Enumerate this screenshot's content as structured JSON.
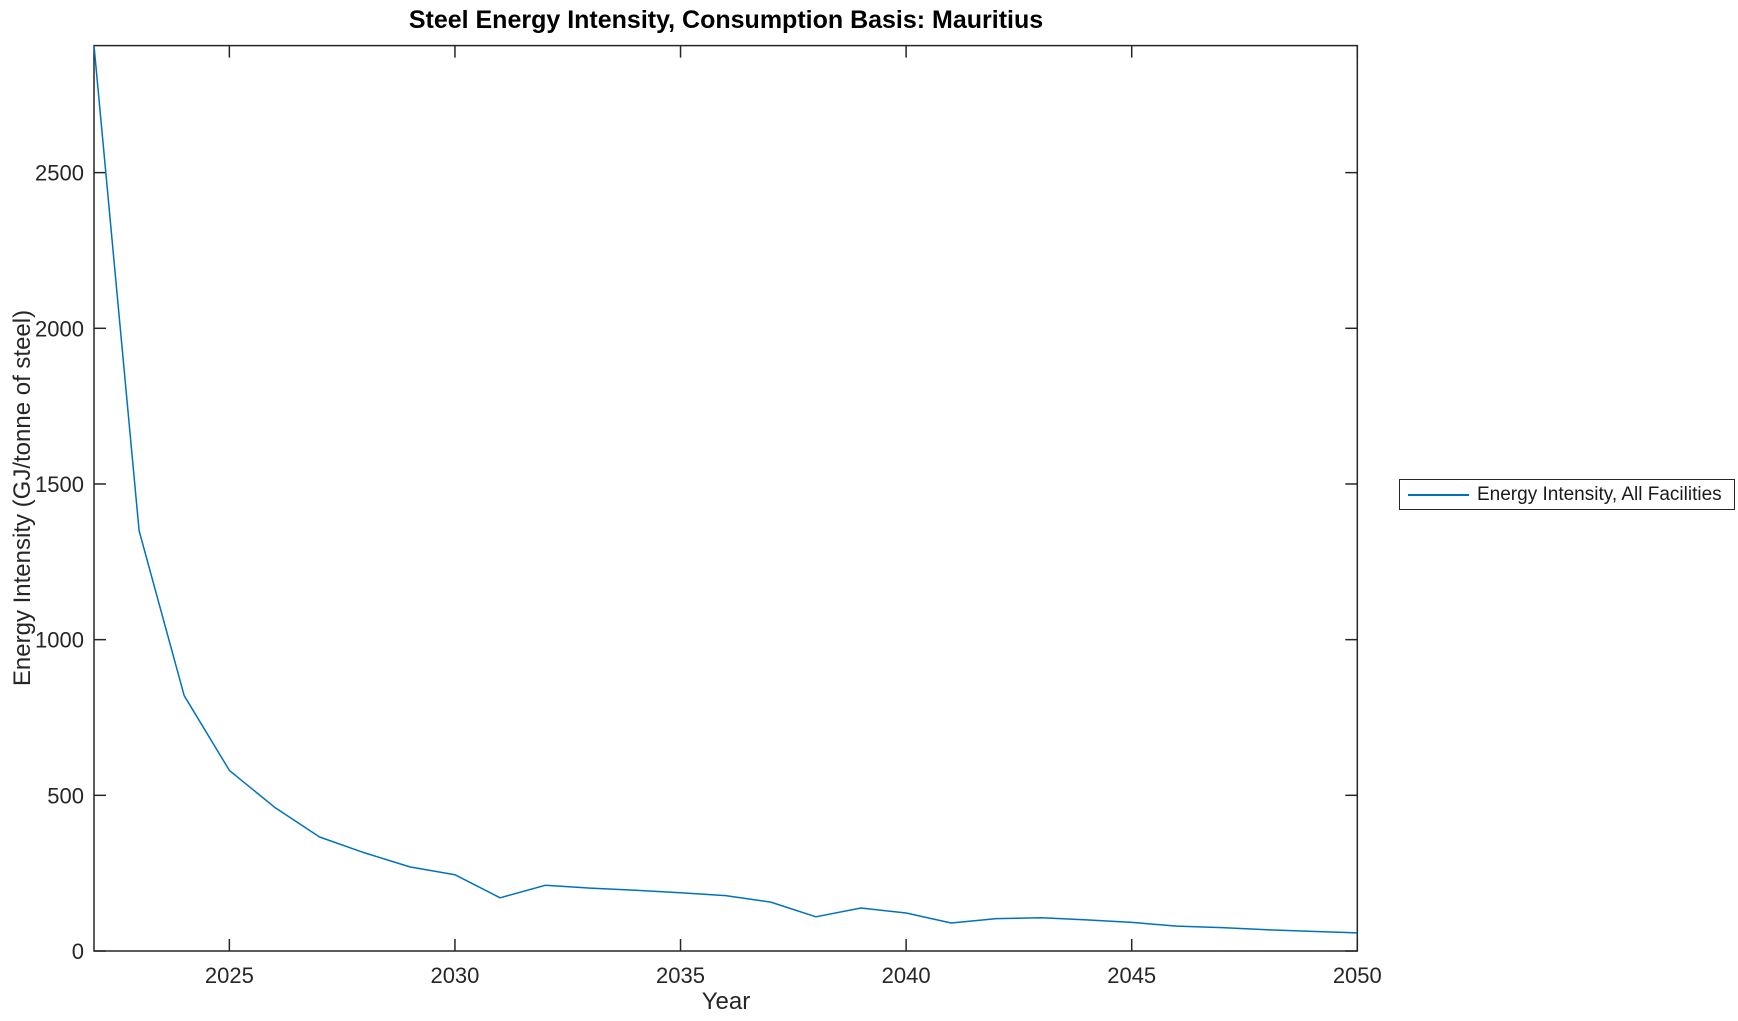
{
  "chart_data": {
    "type": "line",
    "title": "Steel Energy Intensity, Consumption Basis: Mauritius",
    "xlabel": "Year",
    "ylabel": "Energy Intensity (GJ/tonne of steel)",
    "xlim": [
      2022,
      2050
    ],
    "ylim": [
      0,
      2908
    ],
    "xticks": [
      2025,
      2030,
      2035,
      2040,
      2045,
      2050
    ],
    "yticks": [
      0,
      500,
      1000,
      1500,
      2000,
      2500
    ],
    "grid": false,
    "box": true,
    "tick_direction": "in",
    "line_color": "#0072BD",
    "axis_color": "#262626",
    "background_color": "#ffffff",
    "legend": {
      "position": "outside-right",
      "entries": [
        "Energy Intensity, All Facilities"
      ]
    },
    "x": [
      2022,
      2023,
      2024,
      2025,
      2026,
      2027,
      2028,
      2029,
      2030,
      2031,
      2032,
      2033,
      2034,
      2035,
      2036,
      2037,
      2038,
      2039,
      2040,
      2041,
      2042,
      2043,
      2044,
      2045,
      2046,
      2047,
      2048,
      2049,
      2050
    ],
    "series": [
      {
        "name": "Energy Intensity, All Facilities",
        "values": [
          2908,
          1350,
          820,
          580,
          462,
          366,
          315,
          270,
          245,
          171,
          211,
          202,
          195,
          187,
          178,
          157,
          110,
          138,
          122,
          90,
          104,
          107,
          100,
          92,
          80,
          75,
          68,
          63,
          58
        ]
      }
    ]
  }
}
